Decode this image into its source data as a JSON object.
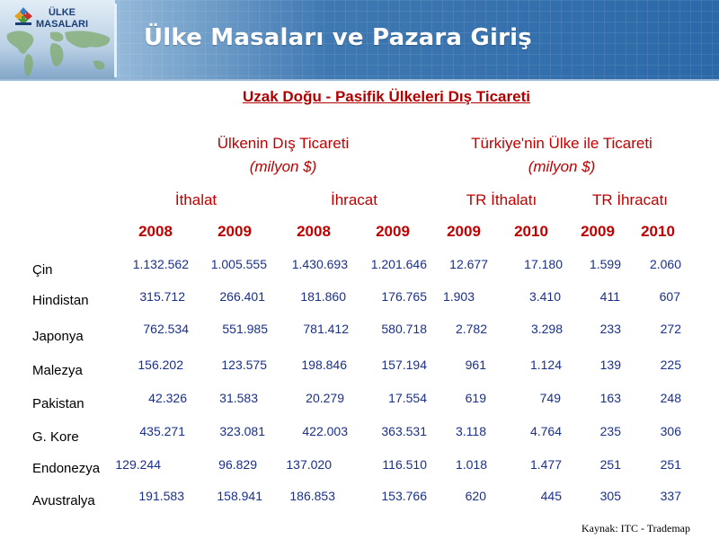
{
  "header": {
    "logo_line1": "ÜLKE",
    "logo_line2": "MASALARI",
    "title": "Ülke Masaları ve Pazara Giriş"
  },
  "slide_title": "Uzak Doğu - Pasifik Ülkeleri Dış Ticareti",
  "groups": {
    "left": {
      "title": "Ülkenin Dış Ticareti",
      "unit": "(milyon $)"
    },
    "right": {
      "title": "Türkiye'nin Ülke ile Ticareti",
      "unit": "(milyon $)"
    }
  },
  "subheaders": [
    "İthalat",
    "İhracat",
    "TR İthalatı",
    "TR İhracatı"
  ],
  "years": [
    "2008",
    "2009",
    "2008",
    "2009",
    "2009",
    "2010",
    "2009",
    "2010"
  ],
  "rows": [
    {
      "country": "Çin",
      "values": [
        "1.132.562",
        "1.005.555",
        "1.430.693",
        "1.201.646",
        "12.677",
        "17.180",
        "1.599",
        "2.060"
      ]
    },
    {
      "country": "Hindistan",
      "values": [
        "315.712",
        "266.401",
        "181.860",
        "176.765",
        "1.903",
        "3.410",
        "411",
        "607"
      ]
    },
    {
      "country": "Japonya",
      "values": [
        "762.534",
        "551.985",
        "781.412",
        "580.718",
        "2.782",
        "3.298",
        "233",
        "272"
      ]
    },
    {
      "country": "Malezya",
      "values": [
        "156.202",
        "123.575",
        "198.846",
        "157.194",
        "961",
        "1.124",
        "139",
        "225"
      ]
    },
    {
      "country": "Pakistan",
      "values": [
        "42.326",
        "31.583",
        "20.279",
        "17.554",
        "619",
        "749",
        "163",
        "248"
      ]
    },
    {
      "country": "G. Kore",
      "values": [
        "435.271",
        "323.081",
        "422.003",
        "363.531",
        "3.118",
        "4.764",
        "235",
        "306"
      ]
    },
    {
      "country": "Endonezya",
      "values": [
        "129.244",
        "96.829",
        "137.020",
        "116.510",
        "1.018",
        "1.477",
        "251",
        "251"
      ]
    },
    {
      "country": "Avustralya",
      "values": [
        "191.583",
        "158.941",
        "186.853",
        "153.766",
        "620",
        "445",
        "305",
        "337"
      ]
    }
  ],
  "source": "Kaynak: ITC - Trademap",
  "colors": {
    "header_red": "#c00000",
    "value_blue": "#1a2f8a",
    "banner_blue": "#2b68a8"
  }
}
